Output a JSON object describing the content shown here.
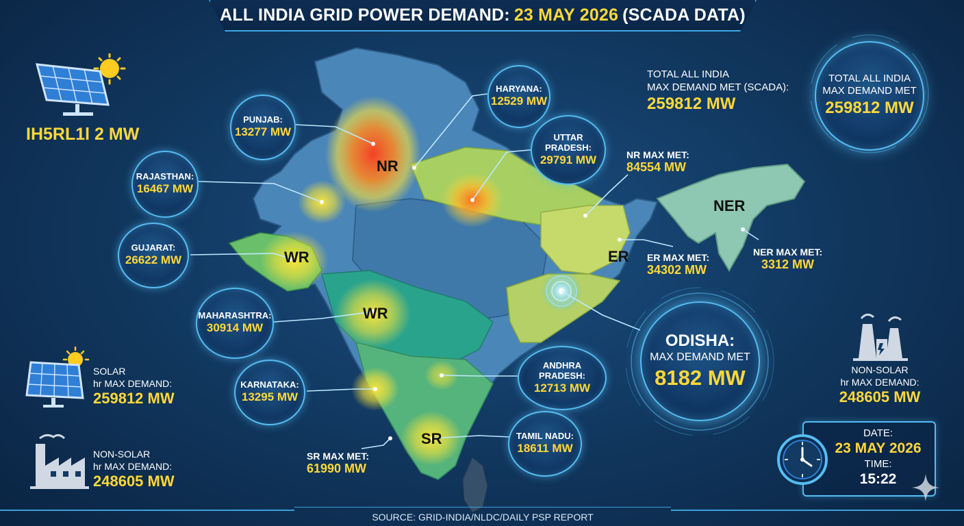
{
  "header": {
    "title_prefix": "ALL INDIA GRID POWER DEMAND:",
    "title_date": "23 MAY 2026",
    "title_suffix": "(SCADA DATA)"
  },
  "footer": {
    "source": "SOURCE: GRID-INDIA/NLDC/DAILY PSP REPORT"
  },
  "top_left": {
    "garbled_text": "IH5RL1l 2 MW"
  },
  "states": {
    "punjab": {
      "label": "PUNJAB:",
      "value": "13277 MW"
    },
    "haryana": {
      "label": "HARYANA:",
      "value": "12529 MW"
    },
    "rajasthan": {
      "label": "RAJASTHAN:",
      "value": "16467 MW"
    },
    "uttar_pradesh": {
      "label": "UTTAR PRADESH:",
      "value": "29791 MW"
    },
    "gujarat": {
      "label": "GUJARAT:",
      "value": "26622 MW"
    },
    "maharashtra": {
      "label": "MAHARASHTRA:",
      "value": "30914 MW"
    },
    "karnataka": {
      "label": "KARNATAKA:",
      "value": "13295 MW"
    },
    "andhra_pradesh": {
      "label": "ANDHRA PRADESH:",
      "value": "12713 MW"
    },
    "tamil_nadu": {
      "label": "TAMIL NADU:",
      "value": "18611 MW"
    },
    "odisha": {
      "label": "ODISHA:",
      "sublabel": "MAX DEMAND MET",
      "value": "8182 MW"
    }
  },
  "regions": {
    "nr": {
      "label": "NR",
      "max_label": "NR MAX MET:",
      "max_value": "84554 MW"
    },
    "er": {
      "label": "ER",
      "max_label": "ER MAX MET:",
      "max_value": "34302 MW"
    },
    "ner": {
      "label": "NER",
      "max_label": "NER MAX MET:",
      "max_value": "3312 MW"
    },
    "wr": {
      "label": "WR"
    },
    "sr": {
      "label": "SR",
      "max_label": "SR MAX MET:",
      "max_value": "61990 MW"
    }
  },
  "total": {
    "plain_label_1": "TOTAL ALL INDIA",
    "plain_label_2": "MAX DEMAND MET (SCADA):",
    "plain_value": "259812 MW",
    "bubble_label_1": "TOTAL ALL INDIA",
    "bubble_label_2": "MAX DEMAND MET",
    "bubble_value": "259812 MW"
  },
  "solar": {
    "line1": "SOLAR",
    "line2": "hr MAX DEMAND:",
    "value": "259812 MW"
  },
  "non_solar_left": {
    "line1": "NON-SOLAR",
    "line2": "hr MAX DEMAND:",
    "value": "248605 MW"
  },
  "non_solar_right": {
    "line1": "NON-SOLAR",
    "line2": "hr MAX DEMAND:",
    "value": "248605 MW"
  },
  "datetime": {
    "date_label": "DATE:",
    "date": "23 MAY 2026",
    "time_label": "TIME:",
    "time": "15:22"
  },
  "colors": {
    "accent": "#ffd83a",
    "border": "#56bdf2",
    "bg": "#123a63"
  },
  "icons": [
    "solar-panel-icon",
    "sun-icon",
    "factory-icon",
    "power-plant-icon",
    "clock-icon",
    "sparkle-icon"
  ]
}
